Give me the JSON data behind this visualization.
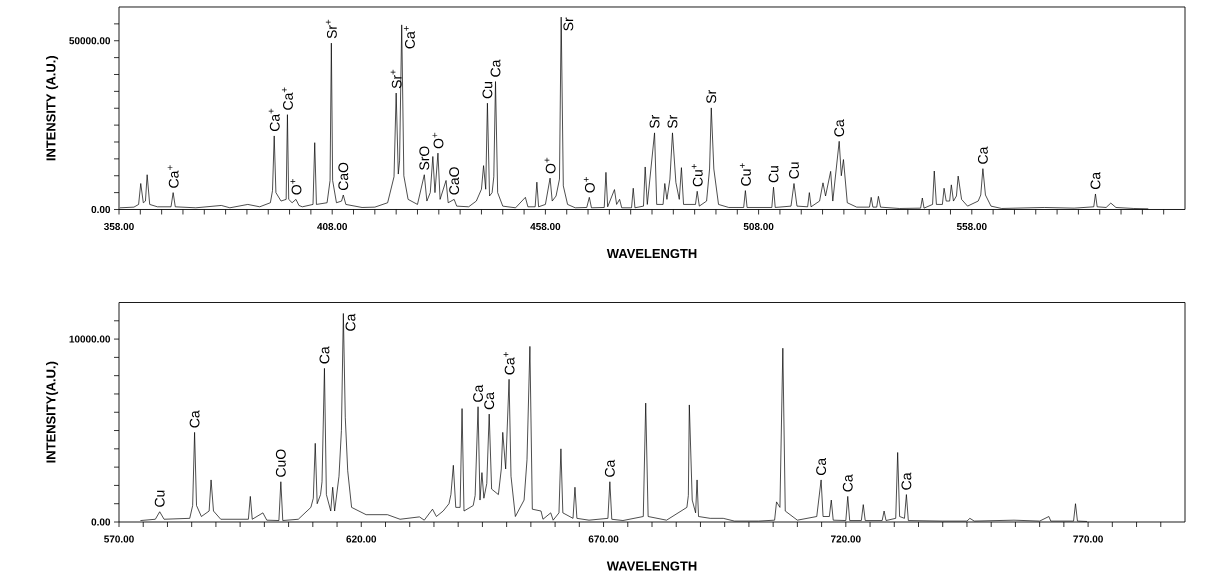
{
  "chart_data": [
    {
      "type": "line",
      "color": "#000000",
      "xlabel": "WAVELENGTH",
      "ylabel": "INTENSITY (A.U.)",
      "xlim": [
        358,
        608
      ],
      "ylim": [
        0,
        60000
      ],
      "xticks": [
        {
          "value": 358,
          "label": "358.00"
        },
        {
          "value": 363,
          "label": null
        },
        {
          "value": 368,
          "label": null
        },
        {
          "value": 373,
          "label": null
        },
        {
          "value": 378,
          "label": null
        },
        {
          "value": 383,
          "label": null
        },
        {
          "value": 388,
          "label": null
        },
        {
          "value": 393,
          "label": null
        },
        {
          "value": 398,
          "label": null
        },
        {
          "value": 403,
          "label": null
        },
        {
          "value": 408,
          "label": "408.00"
        },
        {
          "value": 413,
          "label": null
        },
        {
          "value": 418,
          "label": null
        },
        {
          "value": 423,
          "label": null
        },
        {
          "value": 428,
          "label": null
        },
        {
          "value": 433,
          "label": null
        },
        {
          "value": 438,
          "label": null
        },
        {
          "value": 443,
          "label": null
        },
        {
          "value": 448,
          "label": null
        },
        {
          "value": 453,
          "label": null
        },
        {
          "value": 458,
          "label": "458.00"
        },
        {
          "value": 463,
          "label": null
        },
        {
          "value": 468,
          "label": null
        },
        {
          "value": 473,
          "label": null
        },
        {
          "value": 478,
          "label": null
        },
        {
          "value": 483,
          "label": null
        },
        {
          "value": 488,
          "label": null
        },
        {
          "value": 493,
          "label": null
        },
        {
          "value": 498,
          "label": null
        },
        {
          "value": 503,
          "label": null
        },
        {
          "value": 508,
          "label": "508.00"
        },
        {
          "value": 513,
          "label": null
        },
        {
          "value": 518,
          "label": null
        },
        {
          "value": 523,
          "label": null
        },
        {
          "value": 528,
          "label": null
        },
        {
          "value": 533,
          "label": null
        },
        {
          "value": 538,
          "label": null
        },
        {
          "value": 543,
          "label": null
        },
        {
          "value": 548,
          "label": null
        },
        {
          "value": 553,
          "label": null
        },
        {
          "value": 558,
          "label": "558.00"
        },
        {
          "value": 563,
          "label": null
        },
        {
          "value": 568,
          "label": null
        },
        {
          "value": 573,
          "label": null
        },
        {
          "value": 578,
          "label": null
        },
        {
          "value": 583,
          "label": null
        },
        {
          "value": 588,
          "label": null
        },
        {
          "value": 593,
          "label": null
        },
        {
          "value": 598,
          "label": null
        },
        {
          "value": 603,
          "label": null
        }
      ],
      "yticks": [
        {
          "value": 0,
          "label": "0.00"
        },
        {
          "value": 5000,
          "label": null
        },
        {
          "value": 10000,
          "label": null
        },
        {
          "value": 15000,
          "label": null
        },
        {
          "value": 20000,
          "label": null
        },
        {
          "value": 25000,
          "label": null
        },
        {
          "value": 30000,
          "label": null
        },
        {
          "value": 35000,
          "label": null
        },
        {
          "value": 40000,
          "label": null
        },
        {
          "value": 45000,
          "label": null
        },
        {
          "value": 50000,
          "label": "50000.00"
        },
        {
          "value": 55000,
          "label": null
        }
      ],
      "x": [
        358.3,
        361.5,
        362.6,
        363.1,
        363.7,
        364.2,
        364.6,
        365.2,
        367.0,
        370.2,
        370.7,
        371.2,
        376,
        382,
        384,
        388.2,
        391,
        393.5,
        394.0,
        394.4,
        394.8,
        396.0,
        397.2,
        397.5,
        397.8,
        398.6,
        399.5,
        400.2,
        401,
        403.5,
        403.9,
        404.3,
        406.8,
        407.5,
        407.8,
        408.1,
        409,
        410.2,
        410.6,
        411.2,
        415,
        418,
        421,
        422.5,
        423.0,
        423.5,
        423.8,
        424.3,
        424.8,
        425.8,
        428,
        429.6,
        430.2,
        431.0,
        431.6,
        432.1,
        432.8,
        433.3,
        434.7,
        435.2,
        436.6,
        437.2,
        440,
        441.8,
        443.0,
        443.5,
        444.0,
        444.4,
        444.9,
        445.5,
        445.9,
        446.3,
        446.8,
        448,
        451,
        453.3,
        453.9,
        455.6,
        456.0,
        456.4,
        458.0,
        459.1,
        459.6,
        460.5,
        461.3,
        461.7,
        462.2,
        463.2,
        465,
        467.7,
        468.3,
        468.8,
        471.8,
        472.2,
        472.6,
        474.2,
        474.7,
        475.4,
        475.9,
        478.2,
        478.6,
        479.0,
        481.0,
        481.4,
        481.9,
        483.6,
        484.1,
        485.6,
        486.0,
        486.5,
        487.2,
        487.8,
        488.6,
        489.4,
        489.9,
        490.4,
        493.2,
        493.6,
        494.1,
        495.8,
        496.5,
        496.9,
        497.5,
        498.6,
        501,
        504.5,
        504.9,
        505.3,
        511.1,
        511.5,
        511.9,
        515.6,
        516.3,
        517.0,
        519.5,
        519.9,
        520.3,
        522.3,
        523.1,
        523.7,
        524.9,
        525.4,
        526.9,
        527.4,
        527.9,
        528.8,
        531,
        534.0,
        534.4,
        534.8,
        535.7,
        536.1,
        536.6,
        541,
        546.0,
        546.4,
        546.8,
        548.8,
        549.2,
        549.7,
        551.1,
        551.5,
        552.0,
        552.8,
        553.2,
        553.7,
        554.4,
        554.8,
        555.6,
        557,
        559.5,
        560.1,
        560.6,
        561.2,
        562.5,
        565,
        575,
        582,
        586.6,
        587.0,
        587.4,
        589.5,
        590.6,
        591.8,
        596,
        599.3
      ],
      "values": [
        500,
        700,
        1500,
        7700,
        2000,
        2500,
        10300,
        1500,
        800,
        800,
        5000,
        800,
        500,
        1200,
        500,
        1500,
        800,
        2000,
        5600,
        21800,
        5000,
        2500,
        3000,
        28100,
        3000,
        2000,
        3000,
        1200,
        800,
        1500,
        19800,
        1500,
        2000,
        8600,
        49300,
        8600,
        2000,
        2500,
        4300,
        1500,
        600,
        700,
        2000,
        9700,
        34500,
        10500,
        14400,
        54700,
        10000,
        3000,
        1500,
        10300,
        2500,
        5000,
        15700,
        5000,
        16700,
        3000,
        8600,
        2000,
        3000,
        1000,
        800,
        2500,
        6000,
        13000,
        6000,
        31500,
        4000,
        5000,
        9700,
        37900,
        5000,
        1000,
        500,
        3600,
        800,
        800,
        8100,
        800,
        1500,
        9300,
        2500,
        4000,
        9000,
        57000,
        7000,
        1500,
        500,
        600,
        3600,
        500,
        600,
        11000,
        800,
        5900,
        1500,
        3000,
        500,
        500,
        6300,
        500,
        1000,
        12600,
        1500,
        22700,
        1500,
        1500,
        7700,
        3000,
        9000,
        22700,
        8000,
        3000,
        12400,
        1500,
        1500,
        5400,
        1000,
        2500,
        12000,
        30100,
        12000,
        1500,
        600,
        600,
        5600,
        600,
        600,
        6600,
        600,
        1000,
        7700,
        1000,
        800,
        5000,
        800,
        2500,
        7900,
        4000,
        11300,
        2500,
        20200,
        10000,
        14800,
        2000,
        700,
        700,
        3600,
        700,
        700,
        3900,
        700,
        300,
        400,
        3400,
        400,
        1500,
        11400,
        1500,
        1500,
        6300,
        2500,
        2500,
        7300,
        2500,
        4000,
        9900,
        3000,
        1000,
        2500,
        4300,
        12100,
        4300,
        1000,
        300,
        600,
        400,
        800,
        4600,
        800,
        600,
        1900,
        600,
        300,
        200
      ],
      "annotations": [
        {
          "text": "Ca$^{+}$",
          "x": 370.7,
          "y": 5000
        },
        {
          "text": "Ca$^{+}$",
          "x": 394.4,
          "y": 21800
        },
        {
          "text": "Ca$^{+}$",
          "x": 397.5,
          "y": 28100
        },
        {
          "text": "O$^{+}$",
          "x": 399.5,
          "y": 3000
        },
        {
          "text": "Sr$^{+}$",
          "x": 407.8,
          "y": 49300
        },
        {
          "text": "CaO",
          "x": 410.6,
          "y": 4300
        },
        {
          "text": "Sr$^{+}$",
          "x": 423.0,
          "y": 34500
        },
        {
          "text": "Ca$^{+}$",
          "x": 424.3,
          "y": 54700
        },
        {
          "text": "SrO",
          "x": 429.6,
          "y": 10300
        },
        {
          "text": "O$^{+}$",
          "x": 432.8,
          "y": 16700
        },
        {
          "text": "CaO",
          "x": 436.6,
          "y": 3000
        },
        {
          "text": "Cu",
          "x": 444.4,
          "y": 31500
        },
        {
          "text": "Ca",
          "x": 446.3,
          "y": 37900
        },
        {
          "text": "O$^{+}$",
          "x": 459.1,
          "y": 9300
        },
        {
          "text": "Sr",
          "x": 461.7,
          "y": 57000
        },
        {
          "text": "O$^{+}$",
          "x": 468.3,
          "y": 3600
        },
        {
          "text": "Sr",
          "x": 483.6,
          "y": 22700
        },
        {
          "text": "Sr",
          "x": 487.8,
          "y": 22700
        },
        {
          "text": "Cu$^{+}$",
          "x": 493.6,
          "y": 5400
        },
        {
          "text": "Sr",
          "x": 496.9,
          "y": 30100
        },
        {
          "text": "Cu$^{+}$",
          "x": 504.9,
          "y": 5600
        },
        {
          "text": "Cu",
          "x": 511.5,
          "y": 6600
        },
        {
          "text": "Cu",
          "x": 516.3,
          "y": 7700
        },
        {
          "text": "Ca",
          "x": 526.9,
          "y": 20200
        },
        {
          "text": "Ca",
          "x": 560.6,
          "y": 12100
        },
        {
          "text": "Ca",
          "x": 587.0,
          "y": 4600
        }
      ]
    },
    {
      "type": "line",
      "color": "#000000",
      "xlabel": "WAVELENGTH",
      "ylabel": "INTENSITY(A.U.)",
      "xlim": [
        570,
        790
      ],
      "ylim": [
        0,
        12000
      ],
      "xticks": [
        {
          "value": 570,
          "label": "570.00"
        },
        {
          "value": 575,
          "label": null
        },
        {
          "value": 580,
          "label": null
        },
        {
          "value": 585,
          "label": null
        },
        {
          "value": 590,
          "label": null
        },
        {
          "value": 595,
          "label": null
        },
        {
          "value": 600,
          "label": null
        },
        {
          "value": 605,
          "label": null
        },
        {
          "value": 610,
          "label": null
        },
        {
          "value": 615,
          "label": null
        },
        {
          "value": 620,
          "label": "620.00"
        },
        {
          "value": 625,
          "label": null
        },
        {
          "value": 630,
          "label": null
        },
        {
          "value": 635,
          "label": null
        },
        {
          "value": 640,
          "label": null
        },
        {
          "value": 645,
          "label": null
        },
        {
          "value": 650,
          "label": null
        },
        {
          "value": 655,
          "label": null
        },
        {
          "value": 660,
          "label": null
        },
        {
          "value": 665,
          "label": null
        },
        {
          "value": 670,
          "label": "670.00"
        },
        {
          "value": 675,
          "label": null
        },
        {
          "value": 680,
          "label": null
        },
        {
          "value": 685,
          "label": null
        },
        {
          "value": 690,
          "label": null
        },
        {
          "value": 695,
          "label": null
        },
        {
          "value": 700,
          "label": null
        },
        {
          "value": 705,
          "label": null
        },
        {
          "value": 710,
          "label": null
        },
        {
          "value": 715,
          "label": null
        },
        {
          "value": 720,
          "label": "720.00"
        },
        {
          "value": 725,
          "label": null
        },
        {
          "value": 730,
          "label": null
        },
        {
          "value": 735,
          "label": null
        },
        {
          "value": 740,
          "label": null
        },
        {
          "value": 745,
          "label": null
        },
        {
          "value": 750,
          "label": null
        },
        {
          "value": 755,
          "label": null
        },
        {
          "value": 760,
          "label": null
        },
        {
          "value": 765,
          "label": null
        },
        {
          "value": 770,
          "label": "770.00"
        },
        {
          "value": 775,
          "label": null
        },
        {
          "value": 780,
          "label": null
        },
        {
          "value": 785,
          "label": null
        }
      ],
      "yticks": [
        {
          "value": 0,
          "label": "0.00"
        },
        {
          "value": 1000,
          "label": null
        },
        {
          "value": 2000,
          "label": null
        },
        {
          "value": 3000,
          "label": null
        },
        {
          "value": 4000,
          "label": null
        },
        {
          "value": 5000,
          "label": null
        },
        {
          "value": 6000,
          "label": null
        },
        {
          "value": 7000,
          "label": null
        },
        {
          "value": 8000,
          "label": null
        },
        {
          "value": 9000,
          "label": null
        },
        {
          "value": 10000,
          "label": "10000.00"
        },
        {
          "value": 11000,
          "label": null
        }
      ],
      "x": [
        574.5,
        577.5,
        578.4,
        579.3,
        584.6,
        585.2,
        585.6,
        586.0,
        587,
        588.6,
        589.0,
        589.5,
        591,
        596.7,
        597.1,
        597.5,
        599.7,
        600.5,
        603.0,
        603.4,
        603.8,
        607,
        609.6,
        610.1,
        610.5,
        610.9,
        611.6,
        611.9,
        612.4,
        612.8,
        613.7,
        614.1,
        614.5,
        615.4,
        615.9,
        616.3,
        616.7,
        617.2,
        618,
        621,
        625.4,
        628,
        632,
        633,
        634.7,
        635.5,
        636.9,
        638.1,
        638.5,
        639.0,
        639.5,
        640.4,
        640.8,
        641.2,
        643.1,
        643.5,
        644.1,
        644.5,
        644.9,
        645.3,
        645.9,
        646.4,
        646.9,
        648.3,
        648.9,
        649.2,
        649.8,
        650.5,
        650.9,
        651.8,
        653.6,
        654.2,
        654.8,
        655.3,
        657.1,
        657.5,
        659.1,
        659.6,
        660.8,
        661.2,
        661.6,
        663.7,
        664.1,
        664.5,
        667,
        670.9,
        671.3,
        671.7,
        674,
        678.2,
        678.7,
        679.2,
        683,
        687.2,
        687.5,
        687.7,
        688.3,
        689.0,
        689.3,
        689.6,
        692,
        694.7,
        697,
        702,
        705.3,
        705.7,
        706.4,
        707.0,
        707.5,
        710,
        714.0,
        714.9,
        715.3,
        716.6,
        717.0,
        717.4,
        720.0,
        720.4,
        720.8,
        723.2,
        723.6,
        724.0,
        727.5,
        727.9,
        728.3,
        730.3,
        730.7,
        731.1,
        732.1,
        732.5,
        732.9,
        740,
        745.0,
        745.6,
        746.5,
        754.7,
        760,
        761.9,
        762.3,
        767.0,
        767.4,
        767.8,
        769.7
      ],
      "values": [
        80,
        150,
        560,
        150,
        200,
        900,
        4900,
        900,
        300,
        600,
        2300,
        600,
        150,
        150,
        1400,
        150,
        500,
        100,
        80,
        2200,
        80,
        150,
        800,
        1300,
        4300,
        1000,
        1500,
        2200,
        8400,
        1500,
        600,
        1900,
        600,
        2500,
        5000,
        11400,
        5700,
        2800,
        800,
        400,
        400,
        150,
        280,
        100,
        700,
        300,
        600,
        1000,
        1500,
        3100,
        800,
        800,
        6200,
        600,
        900,
        1450,
        6300,
        1200,
        2700,
        1300,
        2100,
        5900,
        1800,
        1500,
        2900,
        4900,
        2900,
        7800,
        2500,
        300,
        1200,
        3400,
        9600,
        700,
        600,
        150,
        500,
        100,
        500,
        4000,
        500,
        200,
        1900,
        200,
        100,
        200,
        2200,
        150,
        80,
        300,
        6500,
        300,
        100,
        800,
        1450,
        6400,
        1200,
        500,
        2300,
        300,
        200,
        200,
        50,
        50,
        100,
        1100,
        800,
        9500,
        600,
        100,
        300,
        2300,
        300,
        300,
        1200,
        100,
        80,
        1400,
        80,
        80,
        950,
        80,
        80,
        600,
        80,
        200,
        3800,
        300,
        200,
        1500,
        80,
        50,
        50,
        200,
        50,
        100,
        50,
        300,
        50,
        50,
        1000,
        50,
        30
      ],
      "annotations": [
        {
          "text": "Cu",
          "x": 578.4,
          "y": 560
        },
        {
          "text": "Ca",
          "x": 585.6,
          "y": 4900
        },
        {
          "text": "CuO",
          "x": 603.4,
          "y": 2200
        },
        {
          "text": "Ca",
          "x": 612.4,
          "y": 8400
        },
        {
          "text": "Ca",
          "x": 616.3,
          "y": 11400
        },
        {
          "text": "Ca",
          "x": 644.1,
          "y": 6300
        },
        {
          "text": "Ca",
          "x": 646.4,
          "y": 5900
        },
        {
          "text": "Ca$^{+}$",
          "x": 650.5,
          "y": 7800
        },
        {
          "text": "Ca",
          "x": 671.3,
          "y": 2200
        },
        {
          "text": "Ca",
          "x": 714.9,
          "y": 2300
        },
        {
          "text": "Ca",
          "x": 720.4,
          "y": 1400
        },
        {
          "text": "Ca",
          "x": 732.5,
          "y": 1500
        }
      ]
    }
  ]
}
